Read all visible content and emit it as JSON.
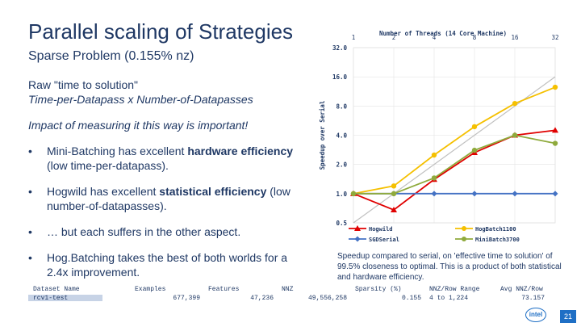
{
  "slide": {
    "title": "Parallel scaling of Strategies",
    "subtitle": "Sparse Problem (0.155% nz)",
    "line1": "Raw \"time to solution\"",
    "line2": "Time-per-Datapass x Number-of-Datapasses",
    "line3": "Impact of measuring it this way is important!",
    "bullets": [
      {
        "prefix": "Mini-Batching has excellent ",
        "bold": "hardware efficiency",
        "suffix": " (low time-per-datapass)."
      },
      {
        "prefix": "Hogwild has excellent ",
        "bold": "statistical efficiency",
        "suffix": " (low number-of-datapasses)."
      },
      {
        "prefix": "… but each suffers in the other aspect.",
        "bold": "",
        "suffix": ""
      },
      {
        "prefix": "Hog.Batching takes the best of both worlds for a 2.4x improvement.",
        "bold": "",
        "suffix": ""
      }
    ],
    "caption": "Speedup compared to serial, on 'effective time to solution' of 99.5% closeness to optimal. This is a product of both statistical and hardware efficiency.",
    "table": {
      "headers": [
        "Dataset Name",
        "Examples",
        "Features",
        "NNZ",
        "Sparsity (%)",
        "NNZ/Row Range",
        "Avg NNZ/Row"
      ],
      "values": [
        "rcv1-test",
        "677,399",
        "47,236",
        "49,556,258",
        "0.155",
        "4 to 1,224",
        "73.157"
      ]
    },
    "logo_text": "intel",
    "page_number": "21"
  },
  "chart_data": {
    "type": "line",
    "title": "Number of Threads (14 Core Machine)",
    "ylabel": "Speedup over Serial",
    "x": [
      1,
      2,
      4,
      8,
      16,
      32
    ],
    "x_tick_labels": [
      "1",
      "2",
      "4",
      "8",
      "16",
      "32"
    ],
    "y_tick_labels": [
      "0.5",
      "1.0",
      "2.0",
      "4.0",
      "8.0",
      "16.0",
      "32.0"
    ],
    "y_scale": "log2",
    "ylim": [
      0.5,
      32
    ],
    "grid": true,
    "colors": {
      "diagonal": "#c0c0c0"
    },
    "series": [
      {
        "name": "Hogwild",
        "color": "#e00000",
        "marker": "triangle",
        "values": [
          1.0,
          0.68,
          1.4,
          2.65,
          4.0,
          4.5
        ]
      },
      {
        "name": "HogBatch1100",
        "color": "#f5c000",
        "marker": "circle",
        "values": [
          1.0,
          1.2,
          2.5,
          4.9,
          8.5,
          12.5
        ]
      },
      {
        "name": "SGDSerial",
        "color": "#4472c4",
        "marker": "diamond",
        "values": [
          1.0,
          1.0,
          1.0,
          1.0,
          1.0,
          1.0
        ]
      },
      {
        "name": "MiniBatch3700",
        "color": "#8faa3c",
        "marker": "circle",
        "values": [
          1.0,
          1.0,
          1.45,
          2.8,
          4.0,
          3.3
        ]
      }
    ]
  }
}
